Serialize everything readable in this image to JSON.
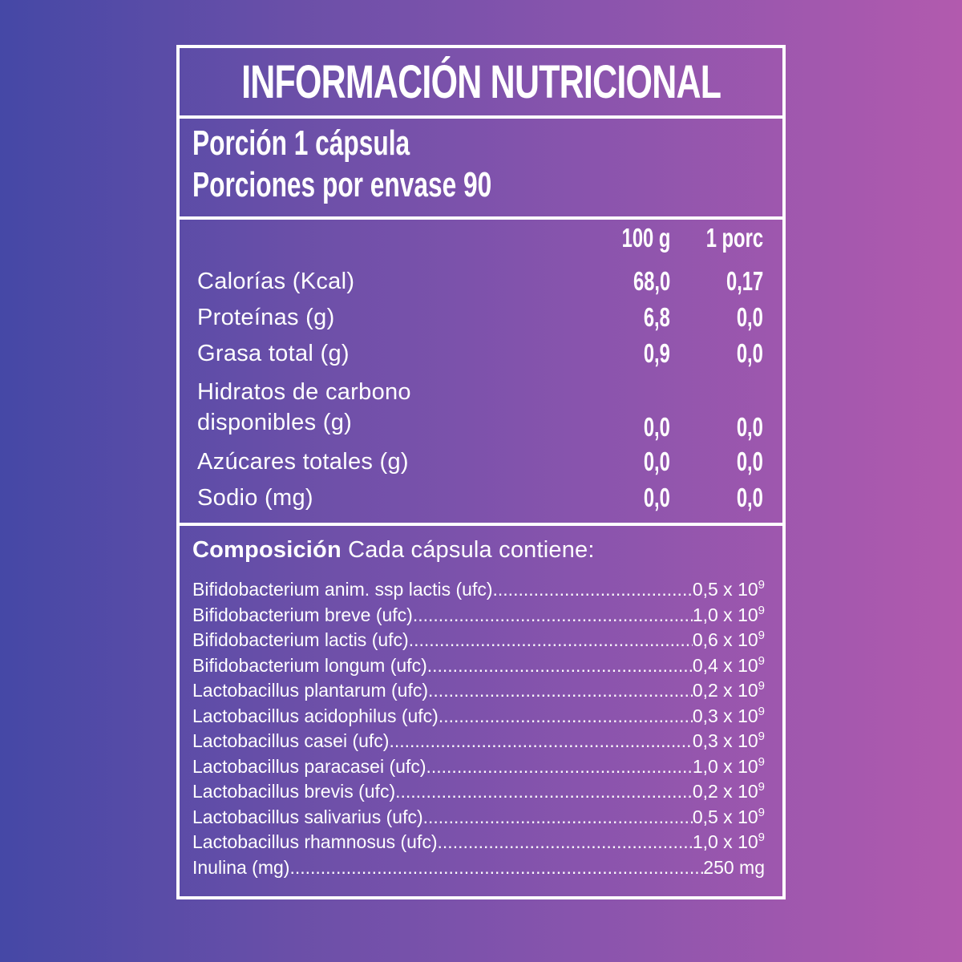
{
  "title": "INFORMACIÓN NUTRICIONAL",
  "portion": {
    "size": "Porción 1 cápsula",
    "servings": "Porciones por envase 90"
  },
  "nutrients": {
    "headers": [
      "100 g",
      "1 porc"
    ],
    "rows": [
      {
        "label": "Calorías (Kcal)",
        "per100": "68,0",
        "perPortion": "0,17"
      },
      {
        "label": "Proteínas (g)",
        "per100": "6,8",
        "perPortion": "0,0"
      },
      {
        "label": "Grasa total (g)",
        "per100": "0,9",
        "perPortion": "0,0"
      },
      {
        "label": "Hidratos de carbono",
        "label2": "disponibles (g)",
        "per100": "0,0",
        "perPortion": "0,0"
      },
      {
        "label": "Azúcares totales (g)",
        "per100": "0,0",
        "perPortion": "0,0"
      },
      {
        "label": "Sodio (mg)",
        "per100": "0,0",
        "perPortion": "0,0"
      }
    ]
  },
  "composition": {
    "heading_bold": "Composición",
    "heading_rest": "Cada cápsula contiene:",
    "items": [
      {
        "name": "Bifidobacterium anim. ssp lactis (ufc)",
        "value": "0,5 x 10",
        "exp": "9"
      },
      {
        "name": "Bifidobacterium breve (ufc)",
        "value": "1,0 x 10",
        "exp": "9"
      },
      {
        "name": "Bifidobacterium lactis (ufc)",
        "value": "0,6 x 10",
        "exp": "9"
      },
      {
        "name": "Bifidobacterium longum (ufc)",
        "value": "0,4 x 10",
        "exp": "9"
      },
      {
        "name": "Lactobacillus plantarum (ufc)",
        "value": "0,2 x 10",
        "exp": "9"
      },
      {
        "name": "Lactobacillus acidophilus (ufc)",
        "value": "0,3 x 10",
        "exp": "9"
      },
      {
        "name": "Lactobacillus casei (ufc)",
        "value": "0,3 x 10",
        "exp": "9"
      },
      {
        "name": "Lactobacillus paracasei (ufc)",
        "value": "1,0 x 10",
        "exp": "9"
      },
      {
        "name": "Lactobacillus brevis (ufc)",
        "value": "0,2 x 10",
        "exp": "9"
      },
      {
        "name": "Lactobacillus salivarius (ufc)",
        "value": "0,5 x 10",
        "exp": "9"
      },
      {
        "name": "Lactobacillus rhamnosus (ufc)",
        "value": "1,0 x 10",
        "exp": "9"
      },
      {
        "name": "Inulina (mg)",
        "value": "250 mg",
        "exp": ""
      }
    ]
  }
}
